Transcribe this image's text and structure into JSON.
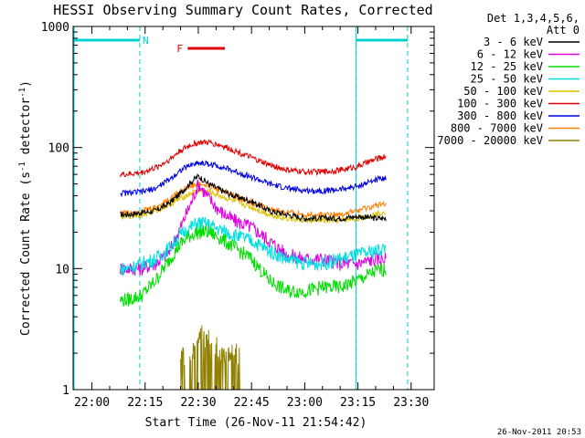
{
  "chart_data": {
    "type": "line",
    "title": "HESSI Observing Summary Count Rates, Corrected",
    "xlabel": "Start Time (26-Nov-11 21:54:42)",
    "ylabel_main": "Corrected Count Rate (s",
    "ylabel_sup1": "-1",
    "ylabel_mid": " detector",
    "ylabel_sup2": "-1",
    "ylabel_end": ")",
    "y_scale": "log",
    "ylim": [
      1,
      1000
    ],
    "xlim": [
      "21:54:42",
      "23:36:30"
    ],
    "xlim_minutes": [
      -5.3,
      96.5
    ],
    "x_ticks": [
      "22:00",
      "22:15",
      "22:30",
      "22:45",
      "23:00",
      "23:15",
      "23:30"
    ],
    "y_ticks": [
      "1",
      "10",
      "100",
      "1000"
    ],
    "legend_position": "right",
    "legend_header": [
      "Det 1,3,4,5,6,",
      "Att 0"
    ],
    "footer_timestamp": "26-Nov-2011 20:53",
    "annotations": {
      "night_label": "N",
      "flare_label": "F",
      "colors": {
        "night": "#00d0d0",
        "flare": "#e00000"
      },
      "night_lines_x": [
        13.5,
        74.5,
        89.0
      ],
      "night_solid_lines_x": [
        -5.3,
        74.5
      ],
      "night_bars": [
        [
          -5.3,
          13.5
        ],
        [
          74.5,
          89.0
        ]
      ],
      "night_bar_y": 770,
      "flare_bar": [
        27.0,
        37.5
      ],
      "flare_bar_y": 660
    },
    "series": [
      {
        "name": "3 - 6 keV",
        "color": "#000000",
        "x": [
          8,
          10,
          14,
          18,
          22,
          25,
          28,
          30,
          33,
          36,
          40,
          45,
          50,
          55,
          60,
          65,
          70,
          75,
          80,
          83
        ],
        "values": [
          28,
          28,
          29,
          30,
          35,
          42,
          52,
          58,
          50,
          45,
          40,
          36,
          30,
          28,
          26,
          26,
          26,
          27,
          26,
          26
        ]
      },
      {
        "name": "6 - 12 keV",
        "color": "#e000e0",
        "x": [
          8,
          10,
          14,
          18,
          22,
          25,
          28,
          30,
          33,
          36,
          40,
          45,
          50,
          55,
          60,
          65,
          70,
          75,
          80,
          83
        ],
        "values": [
          10,
          10,
          10,
          11,
          14,
          22,
          35,
          50,
          38,
          30,
          25,
          22,
          17,
          13,
          12,
          12,
          11,
          11,
          12,
          12
        ]
      },
      {
        "name": "12 - 25 keV",
        "color": "#00e000",
        "x": [
          8,
          10,
          14,
          18,
          22,
          25,
          28,
          30,
          33,
          36,
          40,
          45,
          50,
          55,
          60,
          65,
          70,
          75,
          80,
          83
        ],
        "values": [
          5.5,
          5.5,
          6,
          8,
          12,
          16,
          19,
          20,
          20,
          18,
          15,
          12,
          8,
          6.5,
          6.5,
          7,
          7,
          8,
          9.5,
          10
        ]
      },
      {
        "name": "25 - 50 keV",
        "color": "#00e0e0",
        "x": [
          8,
          10,
          14,
          18,
          22,
          25,
          28,
          30,
          33,
          36,
          40,
          45,
          50,
          55,
          60,
          65,
          70,
          75,
          80,
          83
        ],
        "values": [
          10,
          10,
          11,
          12,
          15,
          19,
          22,
          24,
          23,
          21,
          19,
          17,
          14,
          12,
          11,
          11,
          12,
          13,
          14,
          15
        ]
      },
      {
        "name": "50 - 100 keV",
        "color": "#e0c000",
        "x": [
          8,
          10,
          14,
          18,
          22,
          25,
          28,
          30,
          33,
          36,
          40,
          45,
          50,
          55,
          60,
          65,
          70,
          75,
          80,
          83
        ],
        "values": [
          27,
          27,
          28,
          30,
          34,
          38,
          42,
          44,
          43,
          40,
          36,
          32,
          28,
          26,
          25,
          25,
          25,
          26,
          28,
          30
        ]
      },
      {
        "name": "100 - 300 keV",
        "color": "#e00000",
        "x": [
          8,
          10,
          14,
          18,
          22,
          25,
          28,
          30,
          33,
          36,
          40,
          45,
          50,
          55,
          60,
          65,
          70,
          75,
          80,
          83
        ],
        "values": [
          60,
          60,
          62,
          68,
          80,
          95,
          105,
          110,
          110,
          105,
          95,
          82,
          72,
          65,
          63,
          63,
          65,
          70,
          80,
          85
        ]
      },
      {
        "name": "300 - 800 keV",
        "color": "#0000e0",
        "x": [
          8,
          10,
          14,
          18,
          22,
          25,
          28,
          30,
          33,
          36,
          40,
          45,
          50,
          55,
          60,
          65,
          70,
          75,
          80,
          83
        ],
        "values": [
          42,
          42,
          43,
          46,
          55,
          65,
          72,
          75,
          73,
          70,
          64,
          57,
          50,
          46,
          44,
          44,
          45,
          48,
          54,
          57
        ]
      },
      {
        "name": "800 - 7000 keV",
        "color": "#ff8000",
        "x": [
          8,
          10,
          14,
          18,
          22,
          25,
          28,
          30,
          33,
          36,
          40,
          45,
          50,
          55,
          60,
          65,
          70,
          75,
          80,
          83
        ],
        "values": [
          29,
          29,
          30,
          32,
          38,
          44,
          48,
          50,
          48,
          45,
          40,
          35,
          31,
          29,
          28,
          28,
          28,
          30,
          33,
          35
        ]
      },
      {
        "name": "7000 - 20000 keV",
        "color": "#908000",
        "x": [
          25,
          28,
          30,
          31,
          32,
          33,
          34,
          35,
          36,
          37,
          38,
          40,
          42
        ],
        "values": [
          2,
          2,
          2.5,
          3,
          2.5,
          3,
          2,
          2.5,
          2,
          2,
          2,
          2,
          2
        ]
      }
    ]
  }
}
